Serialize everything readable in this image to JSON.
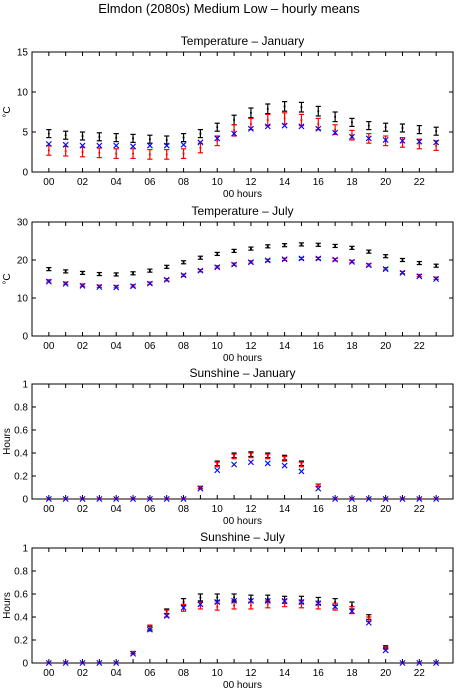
{
  "figure_title": "Elmdon (2080s) Medium Low – hourly means",
  "colors": {
    "black_series": "#000000",
    "red_series": "#ff0000",
    "blue_series": "#0000ff"
  },
  "chart_data": [
    {
      "type": "scatter",
      "title": "Temperature – January",
      "xlabel": "00 hours",
      "ylabel": "°C",
      "xlim": [
        -1,
        24
      ],
      "ylim": [
        0,
        15
      ],
      "xticks": [
        "00",
        "02",
        "04",
        "06",
        "08",
        "10",
        "12",
        "14",
        "16",
        "18",
        "20",
        "22"
      ],
      "yticks": [
        "0",
        "5",
        "10",
        "15"
      ],
      "x": [
        0,
        1,
        2,
        3,
        4,
        5,
        6,
        7,
        8,
        9,
        10,
        11,
        12,
        13,
        14,
        15,
        16,
        17,
        18,
        19,
        20,
        21,
        22,
        23
      ],
      "grid": false,
      "series": [
        {
          "color": "black",
          "marker": "errorbar",
          "values": [
            4.8,
            4.6,
            4.5,
            4.4,
            4.3,
            4.2,
            4.1,
            4.0,
            4.3,
            4.8,
            5.6,
            6.5,
            7.4,
            7.9,
            8.2,
            8.1,
            7.6,
            6.9,
            6.2,
            5.8,
            5.6,
            5.5,
            5.3,
            5.1
          ],
          "err": [
            0.5,
            0.5,
            0.5,
            0.5,
            0.5,
            0.5,
            0.5,
            0.5,
            0.5,
            0.5,
            0.5,
            0.6,
            0.6,
            0.6,
            0.6,
            0.6,
            0.6,
            0.6,
            0.5,
            0.5,
            0.5,
            0.5,
            0.5,
            0.5
          ]
        },
        {
          "color": "red",
          "marker": "errorbar",
          "values": [
            2.7,
            2.6,
            2.5,
            2.4,
            2.3,
            2.3,
            2.2,
            2.2,
            2.3,
            3.0,
            3.9,
            5.2,
            6.0,
            6.5,
            6.7,
            6.5,
            6.0,
            5.3,
            4.6,
            4.2,
            3.9,
            3.7,
            3.5,
            3.3
          ],
          "err": [
            0.6,
            0.6,
            0.6,
            0.6,
            0.6,
            0.6,
            0.6,
            0.6,
            0.6,
            0.6,
            0.6,
            0.7,
            0.7,
            0.7,
            0.7,
            0.7,
            0.7,
            0.6,
            0.6,
            0.6,
            0.6,
            0.6,
            0.6,
            0.6
          ]
        },
        {
          "color": "blue",
          "marker": "x",
          "values": [
            3.5,
            3.4,
            3.3,
            3.3,
            3.3,
            3.2,
            3.3,
            3.3,
            3.4,
            3.7,
            4.2,
            4.8,
            5.4,
            5.7,
            5.8,
            5.7,
            5.4,
            4.9,
            4.4,
            4.2,
            4.0,
            3.9,
            3.8,
            3.7
          ]
        }
      ]
    },
    {
      "type": "scatter",
      "title": "Temperature – July",
      "xlabel": "00 hours",
      "ylabel": "°C",
      "xlim": [
        -1,
        24
      ],
      "ylim": [
        0,
        30
      ],
      "xticks": [
        "00",
        "02",
        "04",
        "06",
        "08",
        "10",
        "12",
        "14",
        "16",
        "18",
        "20",
        "22"
      ],
      "yticks": [
        "0",
        "10",
        "20",
        "30"
      ],
      "x": [
        0,
        1,
        2,
        3,
        4,
        5,
        6,
        7,
        8,
        9,
        10,
        11,
        12,
        13,
        14,
        15,
        16,
        17,
        18,
        19,
        20,
        21,
        22,
        23
      ],
      "grid": false,
      "series": [
        {
          "color": "black",
          "marker": "errorbar",
          "values": [
            17.6,
            17.0,
            16.6,
            16.3,
            16.2,
            16.5,
            17.2,
            18.2,
            19.4,
            20.6,
            21.6,
            22.4,
            23.0,
            23.6,
            23.9,
            24.1,
            24.0,
            23.7,
            23.2,
            22.2,
            21.0,
            20.0,
            19.2,
            18.5
          ],
          "err": [
            0.4,
            0.4,
            0.4,
            0.4,
            0.4,
            0.4,
            0.4,
            0.4,
            0.4,
            0.4,
            0.4,
            0.4,
            0.4,
            0.4,
            0.4,
            0.4,
            0.4,
            0.4,
            0.4,
            0.4,
            0.4,
            0.4,
            0.4,
            0.4
          ]
        },
        {
          "color": "red",
          "marker": "errorbar",
          "values": [
            14.5,
            13.9,
            13.4,
            13.1,
            13.0,
            13.2,
            13.9,
            14.8,
            16.0,
            17.2,
            18.2,
            18.9,
            19.5,
            19.9,
            20.2,
            20.4,
            20.4,
            20.1,
            19.6,
            18.7,
            17.7,
            16.7,
            15.9,
            15.2
          ],
          "err": [
            0.3,
            0.3,
            0.3,
            0.3,
            0.3,
            0.3,
            0.3,
            0.3,
            0.3,
            0.3,
            0.3,
            0.3,
            0.3,
            0.3,
            0.3,
            0.3,
            0.3,
            0.3,
            0.3,
            0.3,
            0.3,
            0.3,
            0.3,
            0.3
          ]
        },
        {
          "color": "blue",
          "marker": "x",
          "values": [
            14.3,
            13.7,
            13.2,
            12.9,
            12.8,
            13.1,
            13.8,
            14.8,
            16.0,
            17.2,
            18.1,
            18.8,
            19.4,
            19.9,
            20.2,
            20.4,
            20.4,
            20.1,
            19.5,
            18.6,
            17.6,
            16.6,
            15.7,
            15.0
          ]
        }
      ]
    },
    {
      "type": "scatter",
      "title": "Sunshine – January",
      "xlabel": "00 hours",
      "ylabel": "Hours",
      "xlim": [
        -1,
        24
      ],
      "ylim": [
        0,
        1
      ],
      "xticks": [
        "00",
        "02",
        "04",
        "06",
        "08",
        "10",
        "12",
        "14",
        "16",
        "18",
        "20",
        "22"
      ],
      "yticks": [
        "0",
        "0.2",
        "0.4",
        "0.6",
        "0.8",
        "1"
      ],
      "x": [
        0,
        1,
        2,
        3,
        4,
        5,
        6,
        7,
        8,
        9,
        10,
        11,
        12,
        13,
        14,
        15,
        16,
        17,
        18,
        19,
        20,
        21,
        22,
        23
      ],
      "grid": false,
      "series": [
        {
          "color": "black",
          "marker": "errorbar",
          "values": [
            0,
            0,
            0,
            0,
            0,
            0,
            0,
            0,
            0,
            0.1,
            0.31,
            0.38,
            0.39,
            0.38,
            0.36,
            0.31,
            0.12,
            0,
            0,
            0,
            0,
            0,
            0,
            0
          ],
          "err": [
            0,
            0,
            0,
            0,
            0,
            0,
            0,
            0,
            0,
            0.01,
            0.02,
            0.02,
            0.02,
            0.02,
            0.02,
            0.02,
            0.01,
            0,
            0,
            0,
            0,
            0,
            0,
            0
          ]
        },
        {
          "color": "red",
          "marker": "errorbar",
          "values": [
            0,
            0,
            0,
            0,
            0,
            0,
            0,
            0,
            0,
            0.1,
            0.3,
            0.37,
            0.38,
            0.37,
            0.35,
            0.3,
            0.12,
            0,
            0,
            0,
            0,
            0,
            0,
            0
          ],
          "err": [
            0,
            0,
            0,
            0,
            0,
            0,
            0,
            0,
            0,
            0.01,
            0.02,
            0.02,
            0.02,
            0.02,
            0.02,
            0.02,
            0.01,
            0,
            0,
            0,
            0,
            0,
            0,
            0
          ]
        },
        {
          "color": "blue",
          "marker": "x",
          "values": [
            0,
            0,
            0,
            0,
            0,
            0,
            0,
            0,
            0,
            0.09,
            0.25,
            0.3,
            0.32,
            0.31,
            0.29,
            0.24,
            0.09,
            0,
            0,
            0,
            0,
            0,
            0,
            0
          ]
        }
      ]
    },
    {
      "type": "scatter",
      "title": "Sunshine – July",
      "xlabel": "00 hours",
      "ylabel": "Hours",
      "xlim": [
        -1,
        24
      ],
      "ylim": [
        0,
        1
      ],
      "xticks": [
        "00",
        "02",
        "04",
        "06",
        "08",
        "10",
        "12",
        "14",
        "16",
        "18",
        "20",
        "22"
      ],
      "yticks": [
        "0",
        "0.2",
        "0.4",
        "0.6",
        "0.8",
        "1"
      ],
      "x": [
        0,
        1,
        2,
        3,
        4,
        5,
        6,
        7,
        8,
        9,
        10,
        11,
        12,
        13,
        14,
        15,
        16,
        17,
        18,
        19,
        20,
        21,
        22,
        23
      ],
      "grid": false,
      "series": [
        {
          "color": "black",
          "marker": "errorbar",
          "values": [
            0,
            0,
            0,
            0,
            0,
            0.09,
            0.3,
            0.45,
            0.53,
            0.57,
            0.57,
            0.57,
            0.56,
            0.56,
            0.55,
            0.55,
            0.54,
            0.53,
            0.5,
            0.4,
            0.14,
            0,
            0,
            0
          ],
          "err": [
            0,
            0,
            0,
            0,
            0,
            0.01,
            0.02,
            0.02,
            0.03,
            0.03,
            0.03,
            0.03,
            0.03,
            0.03,
            0.03,
            0.03,
            0.03,
            0.03,
            0.03,
            0.02,
            0.01,
            0,
            0,
            0
          ]
        },
        {
          "color": "red",
          "marker": "errorbar",
          "values": [
            0,
            0,
            0,
            0,
            0,
            0.09,
            0.31,
            0.43,
            0.48,
            0.5,
            0.49,
            0.5,
            0.5,
            0.51,
            0.52,
            0.51,
            0.5,
            0.49,
            0.46,
            0.38,
            0.13,
            0,
            0,
            0
          ],
          "err": [
            0,
            0,
            0,
            0,
            0,
            0.01,
            0.02,
            0.03,
            0.03,
            0.03,
            0.03,
            0.03,
            0.03,
            0.03,
            0.03,
            0.03,
            0.03,
            0.03,
            0.03,
            0.02,
            0.01,
            0,
            0,
            0
          ]
        },
        {
          "color": "blue",
          "marker": "x",
          "values": [
            0,
            0,
            0,
            0,
            0,
            0.08,
            0.29,
            0.41,
            0.48,
            0.51,
            0.53,
            0.54,
            0.54,
            0.54,
            0.54,
            0.53,
            0.52,
            0.49,
            0.45,
            0.35,
            0.11,
            0,
            0,
            0
          ]
        }
      ]
    }
  ]
}
